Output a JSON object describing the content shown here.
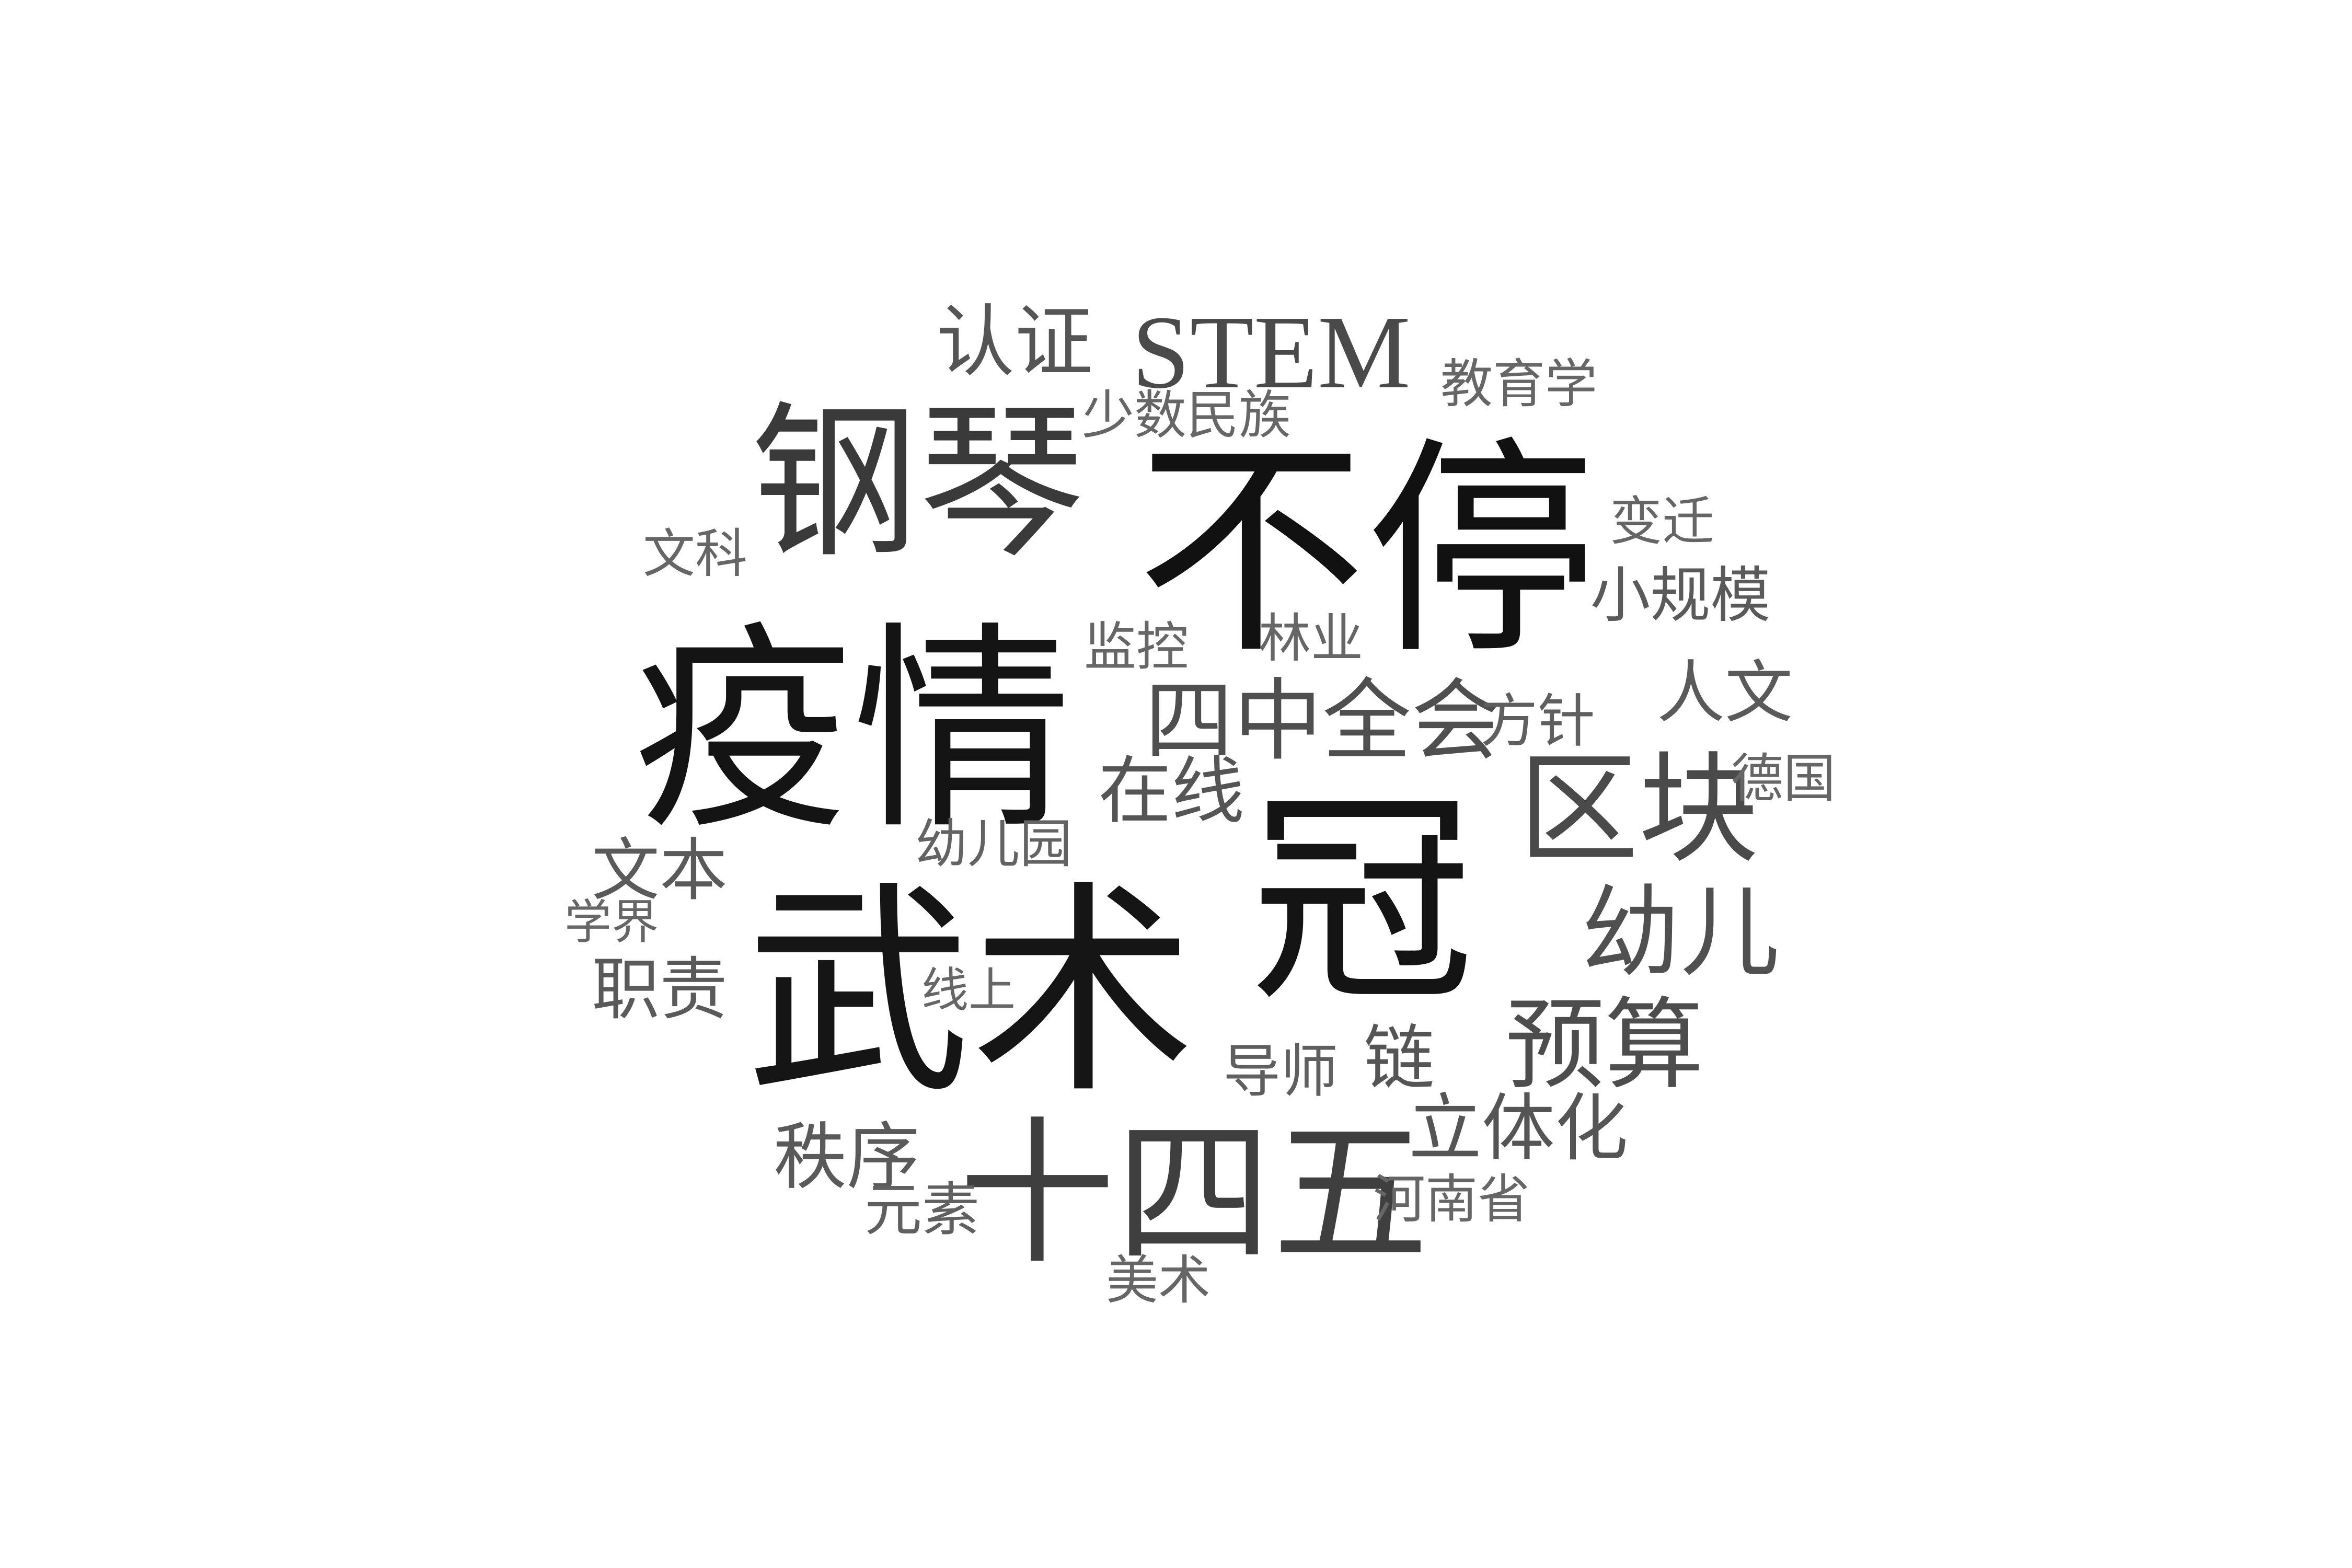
{
  "word_cloud": {
    "words": [
      {
        "text": "不停",
        "color": "#111111"
      },
      {
        "text": "疫情",
        "color": "#141414"
      },
      {
        "text": "武术",
        "color": "#151515"
      },
      {
        "text": "冠",
        "color": "#141414"
      },
      {
        "text": "钢琴",
        "color": "#3a3a3a"
      },
      {
        "text": "十四五",
        "color": "#3f3f3f"
      },
      {
        "text": "STEM",
        "color": "#4a4a4a"
      },
      {
        "text": "区块",
        "color": "#4a4a4a"
      },
      {
        "text": "四中全会",
        "color": "#4f4f4f"
      },
      {
        "text": "幼儿",
        "color": "#505050"
      },
      {
        "text": "预算",
        "color": "#4d4d4d"
      },
      {
        "text": "认证",
        "color": "#555555"
      },
      {
        "text": "在线",
        "color": "#555555"
      },
      {
        "text": "立体化",
        "color": "#555555"
      },
      {
        "text": "人文",
        "color": "#5a5a5a"
      },
      {
        "text": "小规模",
        "color": "#5a5a5a"
      },
      {
        "text": "秩序",
        "color": "#5a5a5a"
      },
      {
        "text": "职责",
        "color": "#5a5a5a"
      },
      {
        "text": "文本",
        "color": "#5a5a5a"
      },
      {
        "text": "链",
        "color": "#555555"
      },
      {
        "text": "方针",
        "color": "#5f5f5f"
      },
      {
        "text": "元素",
        "color": "#606060"
      },
      {
        "text": "导师",
        "color": "#5f5f5f"
      },
      {
        "text": "幼儿园",
        "color": "#636363"
      },
      {
        "text": "少数民族",
        "color": "#666666"
      },
      {
        "text": "教育学",
        "color": "#666666"
      },
      {
        "text": "变迁",
        "color": "#666666"
      },
      {
        "text": "德国",
        "color": "#666666"
      },
      {
        "text": "文科",
        "color": "#666666"
      },
      {
        "text": "监控",
        "color": "#666666"
      },
      {
        "text": "林业",
        "color": "#666666"
      },
      {
        "text": "学界",
        "color": "#666666"
      },
      {
        "text": "线上",
        "color": "#666666"
      },
      {
        "text": "河南省",
        "color": "#666666"
      },
      {
        "text": "美术",
        "color": "#666666"
      }
    ]
  }
}
